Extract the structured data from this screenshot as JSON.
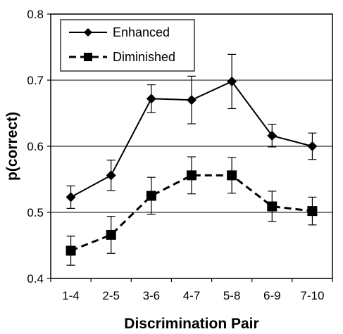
{
  "chart_data": {
    "type": "line",
    "title": "",
    "xlabel": "Discrimination Pair",
    "ylabel": "p(correct)",
    "categories": [
      "1-4",
      "2-5",
      "3-6",
      "4-7",
      "5-8",
      "6-9",
      "7-10"
    ],
    "ylim": [
      0.4,
      0.8
    ],
    "yticks": [
      "0.4",
      "0.5",
      "0.6",
      "0.7",
      "0.8"
    ],
    "ytick_values": [
      0.4,
      0.5,
      0.6,
      0.7,
      0.8
    ],
    "grid": "horizontal",
    "legend_position": "top-left",
    "series": [
      {
        "name": "Enhanced",
        "marker": "diamond",
        "line_style": "solid",
        "color": "#000000",
        "values": [
          0.523,
          0.556,
          0.672,
          0.67,
          0.698,
          0.616,
          0.6
        ],
        "error": [
          0.017,
          0.023,
          0.021,
          0.036,
          0.041,
          0.017,
          0.02
        ]
      },
      {
        "name": "Diminished",
        "marker": "square",
        "line_style": "dashed",
        "color": "#000000",
        "values": [
          0.442,
          0.466,
          0.525,
          0.556,
          0.556,
          0.509,
          0.502
        ],
        "error": [
          0.022,
          0.028,
          0.028,
          0.028,
          0.027,
          0.023,
          0.021
        ]
      }
    ]
  }
}
